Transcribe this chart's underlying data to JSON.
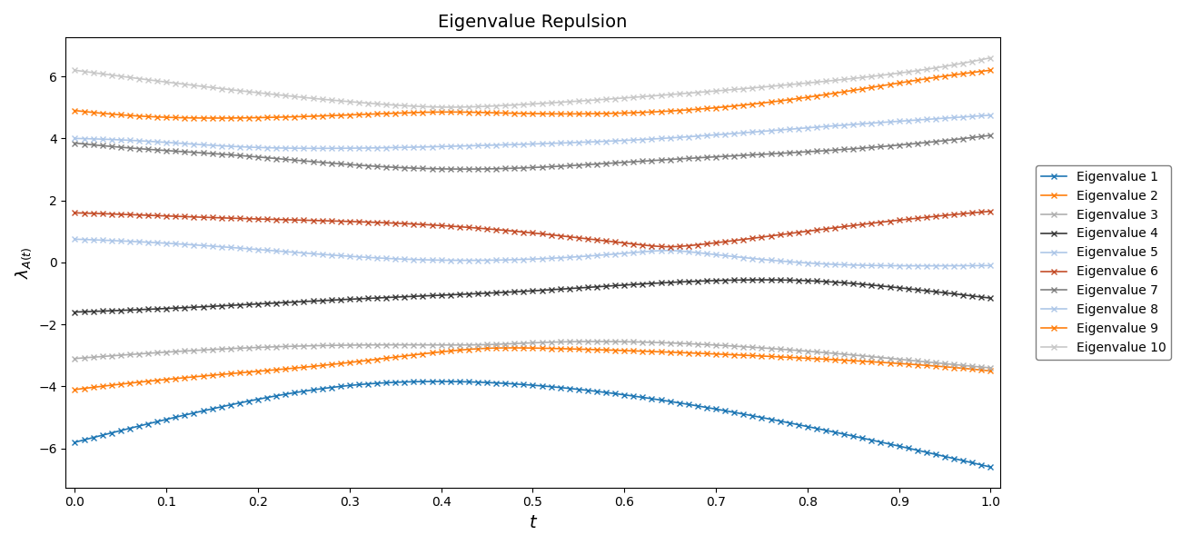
{
  "title": "Eigenvalue Repulsion",
  "xlabel": "t",
  "ylabel": "$\\lambda_{A(t)}$",
  "legend_labels": [
    "Eigenvalue 1",
    "Eigenvalue 2",
    "Eigenvalue 3",
    "Eigenvalue 4",
    "Eigenvalue 5",
    "Eigenvalue 6",
    "Eigenvalue 7",
    "Eigenvalue 8",
    "Eigenvalue 9",
    "Eigenvalue 10"
  ],
  "colors": [
    "#1f77b4",
    "#ff7f0e",
    "#b0b0b0",
    "#3a3a3a",
    "#aec7e8",
    "#c44e2a",
    "#808080",
    "#aec7e8",
    "#ff7f0e",
    "#c8c8c8"
  ],
  "n_points": 101,
  "n": 10,
  "eigs_A": [
    -5.8,
    -4.1,
    -3.1,
    -1.6,
    0.75,
    1.6,
    3.85,
    4.0,
    4.9,
    6.2
  ],
  "eigs_B": [
    -6.6,
    -3.5,
    -3.4,
    -1.15,
    -0.1,
    1.65,
    4.1,
    4.75,
    6.2,
    6.6
  ]
}
